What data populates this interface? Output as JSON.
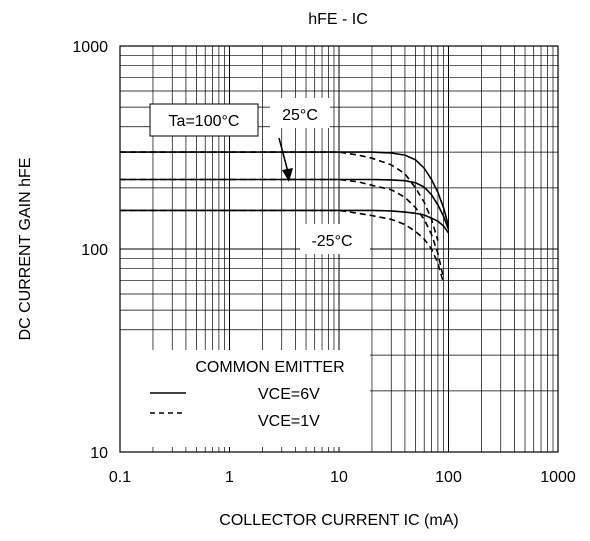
{
  "chart_data": {
    "type": "line",
    "title": "hFE - IC",
    "xlabel": "COLLECTOR CURRENT IC (mA)",
    "ylabel": "DC CURRENT GAIN  hFE",
    "xscale": "log",
    "yscale": "log",
    "xlim": [
      0.1,
      1000
    ],
    "ylim": [
      10,
      1000
    ],
    "grid": true,
    "x_ticks": [
      "0.1",
      "1",
      "10",
      "100",
      "1000"
    ],
    "y_ticks": [
      "10",
      "100",
      "1000"
    ],
    "annotations": {
      "ta_label": "Ta=100°C",
      "mid_label": "25°C",
      "low_label": "-25°C"
    },
    "legend": {
      "title": "COMMON EMITTER",
      "placement": "bottom-left",
      "entries": [
        {
          "label": "VCE=6V",
          "style": "solid"
        },
        {
          "label": "VCE=1V",
          "style": "dashed"
        }
      ]
    },
    "series": [
      {
        "style": "solid",
        "temperature": "Ta=100°C",
        "x": [
          0.1,
          1,
          10,
          20,
          30,
          40,
          50,
          60,
          70,
          80,
          90,
          100
        ],
        "y": [
          300,
          300,
          300,
          300,
          297,
          290,
          275,
          250,
          220,
          190,
          160,
          130
        ]
      },
      {
        "style": "solid",
        "temperature": "25°C",
        "x": [
          0.1,
          1,
          10,
          20,
          30,
          40,
          50,
          60,
          70,
          80,
          90,
          100
        ],
        "y": [
          220,
          220,
          220,
          220,
          219,
          217,
          212,
          202,
          185,
          165,
          145,
          125
        ]
      },
      {
        "style": "solid",
        "temperature": "-25°C",
        "x": [
          0.1,
          1,
          10,
          20,
          30,
          40,
          50,
          60,
          70,
          80,
          90,
          100
        ],
        "y": [
          155,
          155,
          155,
          155,
          154,
          152,
          150,
          147,
          142,
          137,
          130,
          120
        ]
      },
      {
        "style": "dashed",
        "temperature": "Ta=100°C",
        "x": [
          0.1,
          1,
          5,
          10,
          15,
          20,
          30,
          40,
          50,
          60,
          70,
          80
        ],
        "y": [
          300,
          300,
          300,
          300,
          290,
          280,
          260,
          235,
          200,
          170,
          140,
          110
        ]
      },
      {
        "style": "dashed",
        "temperature": "25°C",
        "x": [
          0.1,
          1,
          5,
          10,
          15,
          20,
          30,
          40,
          50,
          60,
          70,
          80,
          90
        ],
        "y": [
          220,
          220,
          220,
          220,
          214,
          206,
          196,
          180,
          160,
          140,
          118,
          95,
          72
        ]
      },
      {
        "style": "dashed",
        "temperature": "-25°C",
        "x": [
          0.1,
          1,
          5,
          10,
          15,
          20,
          30,
          40,
          50,
          60,
          70,
          80,
          90
        ],
        "y": [
          155,
          155,
          155,
          155,
          150,
          146,
          140,
          132,
          122,
          112,
          100,
          85,
          68
        ]
      }
    ]
  }
}
